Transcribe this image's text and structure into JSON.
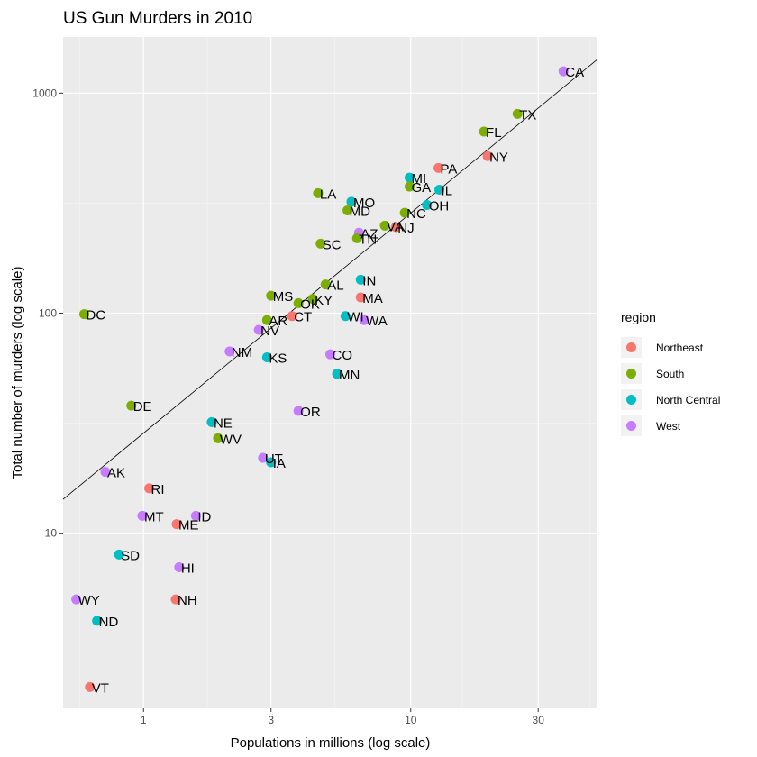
{
  "chart_data": {
    "type": "scatter",
    "title": "US Gun Murders in 2010",
    "xlabel": "Populations in millions (log scale)",
    "ylabel": "Total number of murders (log scale)",
    "x_scale": "log10",
    "y_scale": "log10",
    "xlim": [
      0.5,
      50
    ],
    "ylim": [
      1.6,
      1800
    ],
    "x_ticks": [
      1,
      3,
      10,
      30
    ],
    "x_tick_labels": [
      "1",
      "3",
      "10",
      "30"
    ],
    "y_ticks": [
      10,
      100,
      1000
    ],
    "y_tick_labels": [
      "10",
      "100",
      "1000"
    ],
    "grid": true,
    "legend": {
      "title": "region",
      "placement": "right",
      "entries": [
        {
          "name": "Northeast",
          "color": "#F8766D"
        },
        {
          "name": "South",
          "color": "#7CAE00"
        },
        {
          "name": "North Central",
          "color": "#00BFC4"
        },
        {
          "name": "West",
          "color": "#C77CFF"
        }
      ]
    },
    "reference_line": {
      "description": "average murder rate",
      "rate_per_million": 28.5
    },
    "points": [
      {
        "label": "CA",
        "x": 37.3,
        "y": 1257,
        "region": "West"
      },
      {
        "label": "TX",
        "x": 25.1,
        "y": 805,
        "region": "South"
      },
      {
        "label": "FL",
        "x": 18.8,
        "y": 669,
        "region": "South"
      },
      {
        "label": "NY",
        "x": 19.4,
        "y": 517,
        "region": "Northeast"
      },
      {
        "label": "PA",
        "x": 12.7,
        "y": 457,
        "region": "Northeast"
      },
      {
        "label": "MI",
        "x": 9.9,
        "y": 413,
        "region": "North Central"
      },
      {
        "label": "GA",
        "x": 9.9,
        "y": 376,
        "region": "South"
      },
      {
        "label": "IL",
        "x": 12.8,
        "y": 364,
        "region": "North Central"
      },
      {
        "label": "LA",
        "x": 4.5,
        "y": 351,
        "region": "South"
      },
      {
        "label": "MO",
        "x": 6.0,
        "y": 321,
        "region": "North Central"
      },
      {
        "label": "OH",
        "x": 11.5,
        "y": 310,
        "region": "North Central"
      },
      {
        "label": "MD",
        "x": 5.8,
        "y": 293,
        "region": "South"
      },
      {
        "label": "NC",
        "x": 9.5,
        "y": 286,
        "region": "South"
      },
      {
        "label": "VA",
        "x": 8.0,
        "y": 250,
        "region": "South"
      },
      {
        "label": "NJ",
        "x": 8.8,
        "y": 246,
        "region": "Northeast"
      },
      {
        "label": "AZ",
        "x": 6.4,
        "y": 232,
        "region": "West"
      },
      {
        "label": "TN",
        "x": 6.3,
        "y": 219,
        "region": "South"
      },
      {
        "label": "SC",
        "x": 4.6,
        "y": 207,
        "region": "South"
      },
      {
        "label": "IN",
        "x": 6.5,
        "y": 142,
        "region": "North Central"
      },
      {
        "label": "AL",
        "x": 4.8,
        "y": 135,
        "region": "South"
      },
      {
        "label": "MS",
        "x": 3.0,
        "y": 120,
        "region": "South"
      },
      {
        "label": "MA",
        "x": 6.5,
        "y": 118,
        "region": "Northeast"
      },
      {
        "label": "KY",
        "x": 4.3,
        "y": 116,
        "region": "South"
      },
      {
        "label": "OK",
        "x": 3.8,
        "y": 111,
        "region": "South"
      },
      {
        "label": "DC",
        "x": 0.6,
        "y": 99,
        "region": "South"
      },
      {
        "label": "CT",
        "x": 3.6,
        "y": 97,
        "region": "Northeast"
      },
      {
        "label": "WI",
        "x": 5.7,
        "y": 97,
        "region": "North Central"
      },
      {
        "label": "AR",
        "x": 2.9,
        "y": 93,
        "region": "South"
      },
      {
        "label": "WA",
        "x": 6.7,
        "y": 93,
        "region": "West"
      },
      {
        "label": "NV",
        "x": 2.7,
        "y": 84,
        "region": "West"
      },
      {
        "label": "NM",
        "x": 2.1,
        "y": 67,
        "region": "West"
      },
      {
        "label": "CO",
        "x": 5.0,
        "y": 65,
        "region": "West"
      },
      {
        "label": "KS",
        "x": 2.9,
        "y": 63,
        "region": "North Central"
      },
      {
        "label": "MN",
        "x": 5.3,
        "y": 53,
        "region": "North Central"
      },
      {
        "label": "DE",
        "x": 0.9,
        "y": 38,
        "region": "South"
      },
      {
        "label": "OR",
        "x": 3.8,
        "y": 36,
        "region": "West"
      },
      {
        "label": "NE",
        "x": 1.8,
        "y": 32,
        "region": "North Central"
      },
      {
        "label": "WV",
        "x": 1.9,
        "y": 27,
        "region": "South"
      },
      {
        "label": "UT",
        "x": 2.8,
        "y": 22,
        "region": "West"
      },
      {
        "label": "IA",
        "x": 3.0,
        "y": 21,
        "region": "North Central"
      },
      {
        "label": "AK",
        "x": 0.72,
        "y": 19,
        "region": "West"
      },
      {
        "label": "RI",
        "x": 1.05,
        "y": 16,
        "region": "Northeast"
      },
      {
        "label": "MT",
        "x": 0.99,
        "y": 12,
        "region": "West"
      },
      {
        "label": "ID",
        "x": 1.57,
        "y": 12,
        "region": "West"
      },
      {
        "label": "ME",
        "x": 1.33,
        "y": 11,
        "region": "Northeast"
      },
      {
        "label": "SD",
        "x": 0.81,
        "y": 8,
        "region": "North Central"
      },
      {
        "label": "HI",
        "x": 1.36,
        "y": 7,
        "region": "West"
      },
      {
        "label": "WY",
        "x": 0.56,
        "y": 5,
        "region": "West"
      },
      {
        "label": "NH",
        "x": 1.32,
        "y": 5,
        "region": "Northeast"
      },
      {
        "label": "ND",
        "x": 0.67,
        "y": 4,
        "region": "North Central"
      },
      {
        "label": "VT",
        "x": 0.63,
        "y": 2,
        "region": "Northeast"
      }
    ]
  }
}
